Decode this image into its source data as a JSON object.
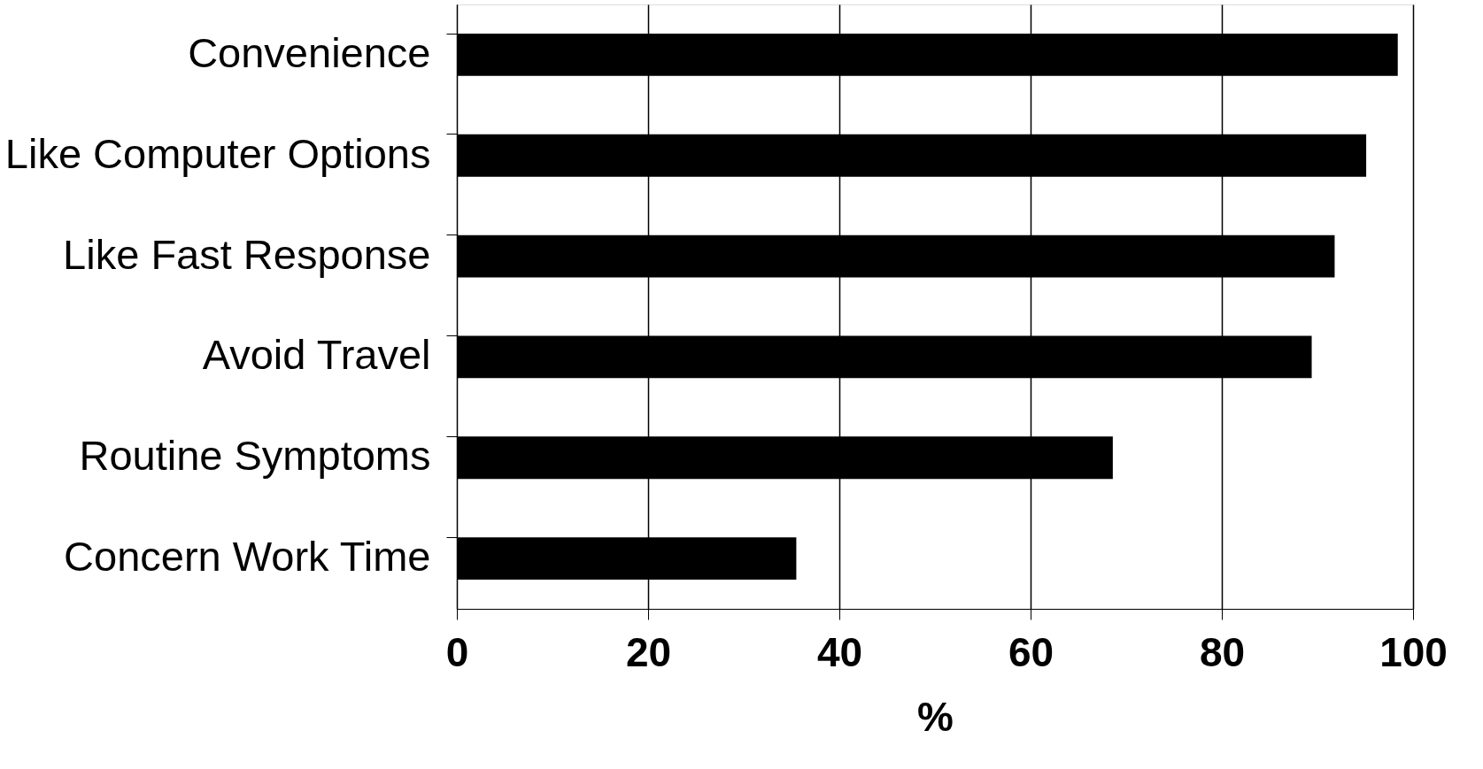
{
  "chart_data": {
    "type": "bar",
    "orientation": "horizontal",
    "xlabel": "%",
    "categories": [
      "Convenience",
      "Like Computer Options",
      "Like Fast Response",
      "Avoid Travel",
      "Routine Symptoms",
      "Concern Work Time"
    ],
    "values": [
      98.4,
      95.1,
      91.8,
      89.4,
      68.6,
      35.5
    ],
    "color": "#000000",
    "xlim": [
      0,
      100
    ],
    "xticks": [
      0,
      20,
      40,
      60,
      80,
      100
    ],
    "grid": "x"
  }
}
